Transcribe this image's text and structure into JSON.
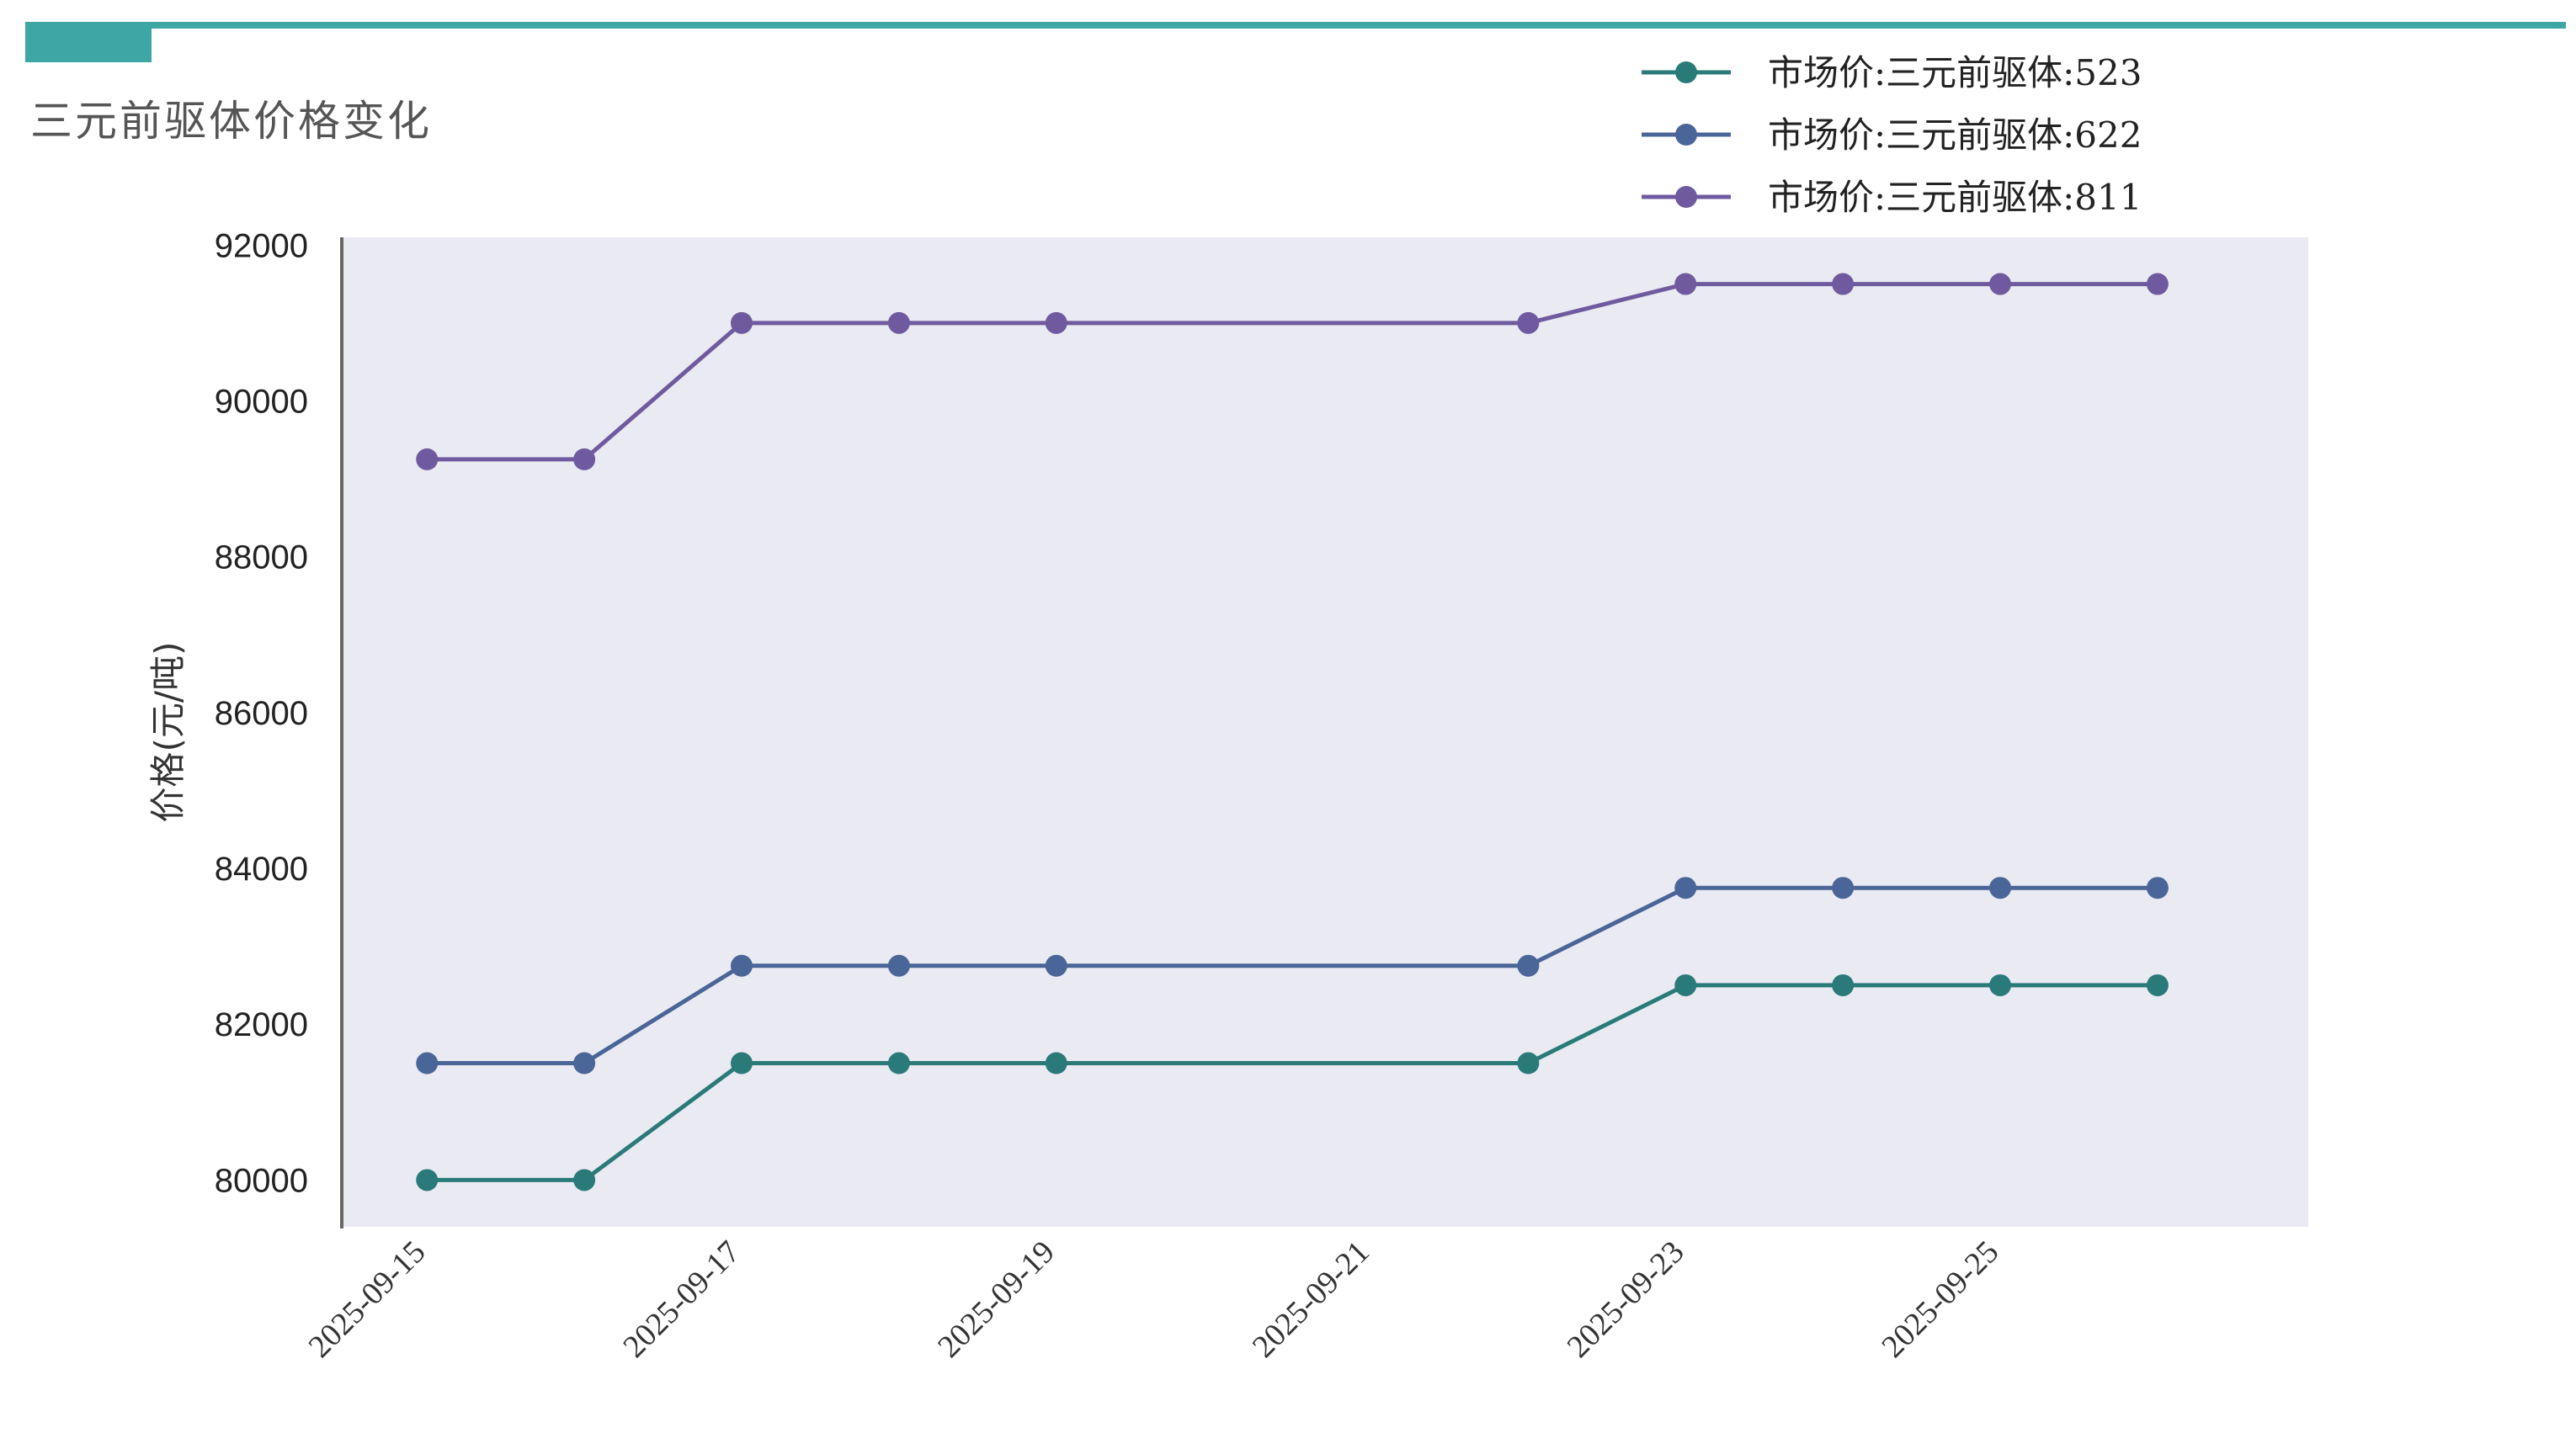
{
  "page": {
    "title": "三元前驱体价格变化",
    "accent_color": "#3fa6a6"
  },
  "chart_data": {
    "type": "line",
    "title": "",
    "xlabel": "",
    "ylabel": "价格(元/吨)",
    "x": [
      "2025-09-15",
      "2025-09-16",
      "2025-09-17",
      "2025-09-18",
      "2025-09-19",
      "2025-09-22",
      "2025-09-23",
      "2025-09-24",
      "2025-09-25",
      "2025-09-26"
    ],
    "x_ticks": [
      "2025-09-15",
      "2025-09-17",
      "2025-09-19",
      "2025-09-21",
      "2025-09-23",
      "2025-09-25"
    ],
    "y_ticks": [
      80000,
      82000,
      84000,
      86000,
      88000,
      90000,
      92000
    ],
    "ylim": [
      79400,
      92100
    ],
    "xlim": [
      "2025-09-14T11:00",
      "2025-09-26T23:00"
    ],
    "grid": false,
    "plot_background": "#eaeaf2",
    "legend_position": "top-right",
    "series": [
      {
        "name": "市场价:三元前驱体:523",
        "color": "#2a7a7a",
        "values": [
          80000,
          80000,
          81500,
          81500,
          81500,
          81500,
          82500,
          82500,
          82500,
          82500
        ]
      },
      {
        "name": "市场价:三元前驱体:622",
        "color": "#4a6597",
        "values": [
          81500,
          81500,
          82750,
          82750,
          82750,
          82750,
          83750,
          83750,
          83750,
          83750
        ]
      },
      {
        "name": "市场价:三元前驱体:811",
        "color": "#6f5a9f",
        "values": [
          89250,
          89250,
          91000,
          91000,
          91000,
          91000,
          91500,
          91500,
          91500,
          91500
        ]
      }
    ]
  }
}
